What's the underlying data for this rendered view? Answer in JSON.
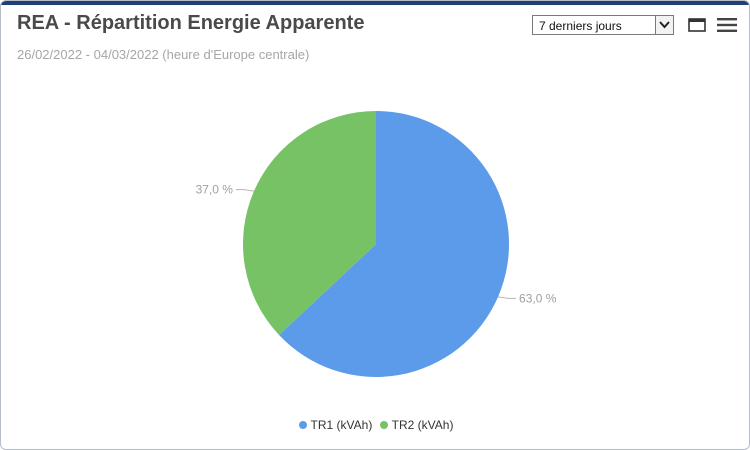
{
  "header": {
    "title": "REA - Répartition Energie Apparente",
    "subtitle": "26/02/2022 - 04/03/2022 (heure d'Europe centrale)"
  },
  "period_select": {
    "value": "7 derniers jours"
  },
  "icons": {
    "window": "window-icon",
    "menu": "hamburger-menu-icon"
  },
  "colors": {
    "TR1": "#5b9bea",
    "TR2": "#78c266",
    "title_bar": "#1f3f7a"
  },
  "chart_data": {
    "type": "pie",
    "slices": [
      {
        "name": "TR1 (kVAh)",
        "value": 63.0,
        "label": "63,0 %",
        "color": "#5b9bea"
      },
      {
        "name": "TR2 (kVAh)",
        "value": 37.0,
        "label": "37,0 %",
        "color": "#78c266"
      }
    ],
    "legend": [
      "TR1 (kVAh)",
      "TR2 (kVAh)"
    ],
    "legend_placement": "bottom-center"
  }
}
